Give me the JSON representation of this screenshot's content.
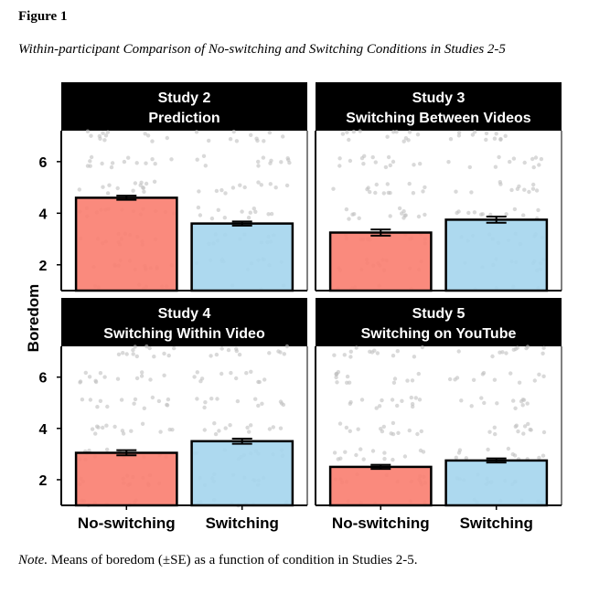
{
  "figure": {
    "label": "Figure 1",
    "title": "Within-participant Comparison of No-switching and Switching Conditions in Studies 2-5",
    "note_prefix": "Note.",
    "note_text": " Means of boredom (±SE) as a function of condition in Studies 2-5."
  },
  "colors": {
    "no_switching": "#fa8072",
    "switching": "#a6d6ee",
    "strip": "#000000",
    "points": "#bfbfbf"
  },
  "chart_data": {
    "type": "bar",
    "ylabel": "Boredom",
    "xlabel": "",
    "ylim": [
      1,
      7.2
    ],
    "yticks": [
      2,
      4,
      6
    ],
    "categories": [
      "No-switching",
      "Switching"
    ],
    "overlay": "jittered individual responses (1-7)",
    "panels": [
      {
        "title_line1": "Study 2",
        "title_line2": "Prediction",
        "values": [
          4.6,
          3.6
        ],
        "se": [
          0.08,
          0.08
        ]
      },
      {
        "title_line1": "Study 3",
        "title_line2": "Switching Between Videos",
        "values": [
          3.25,
          3.75
        ],
        "se": [
          0.12,
          0.12
        ]
      },
      {
        "title_line1": "Study 4",
        "title_line2": "Switching Within Video",
        "values": [
          3.05,
          3.5
        ],
        "se": [
          0.1,
          0.1
        ]
      },
      {
        "title_line1": "Study 5",
        "title_line2": "Switching on YouTube",
        "values": [
          2.5,
          2.75
        ],
        "se": [
          0.08,
          0.08
        ]
      }
    ]
  }
}
